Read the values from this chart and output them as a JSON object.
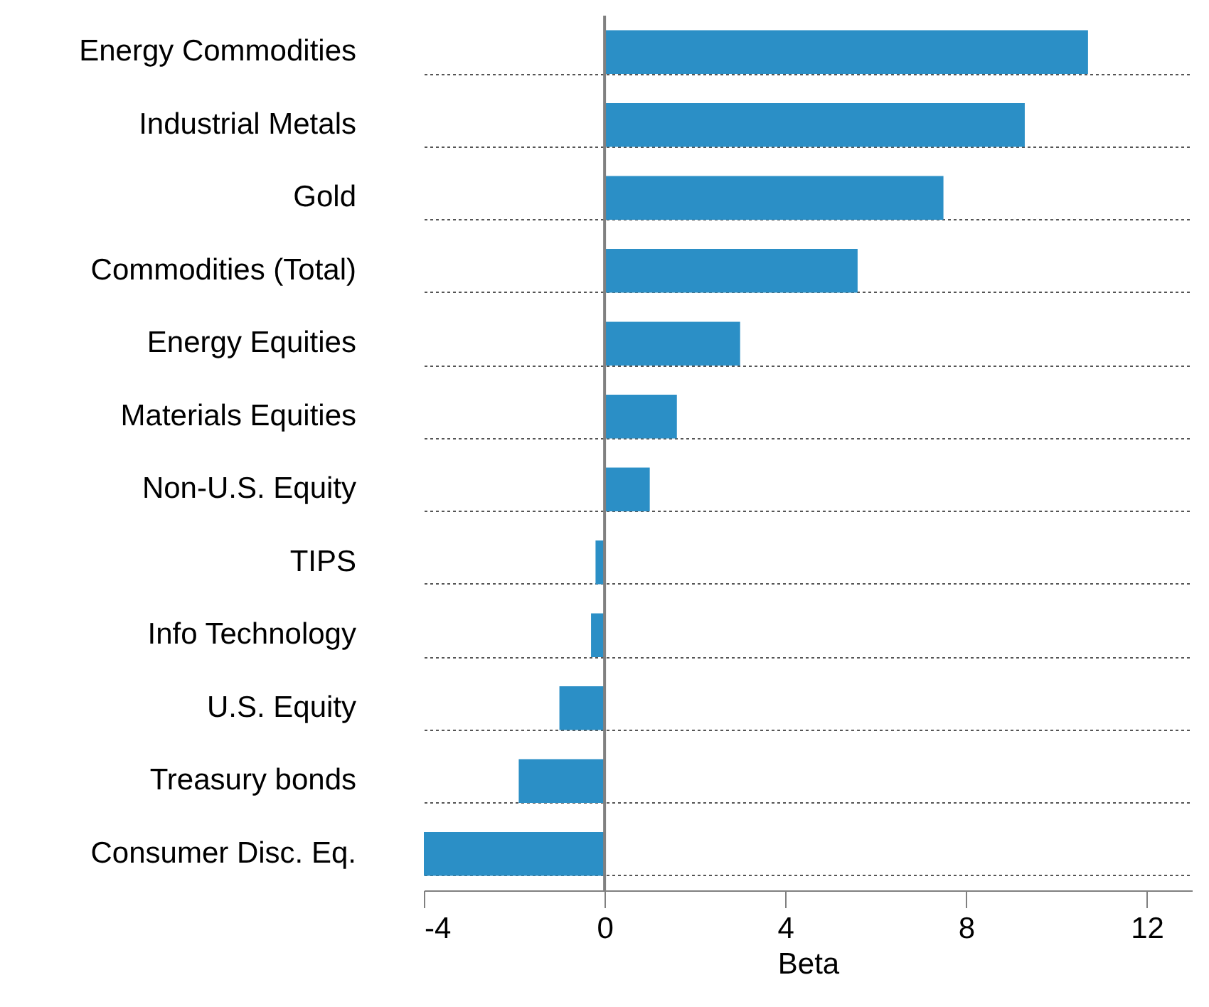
{
  "chart_data": {
    "type": "bar",
    "orientation": "horizontal",
    "xlabel": "Beta",
    "categories": [
      "Energy Commodities",
      "Industrial Metals",
      "Gold",
      "Commodities (Total)",
      "Energy Equities",
      "Materials Equities",
      "Non-U.S. Equity",
      "TIPS",
      "Info Technology",
      "U.S. Equity",
      "Treasury bonds",
      "Consumer Disc. Eq."
    ],
    "values": [
      10.7,
      9.3,
      7.5,
      5.6,
      3.0,
      1.6,
      1.0,
      -0.2,
      -0.3,
      -1.0,
      -1.9,
      -4.0
    ],
    "color": "#2b8fc6",
    "xlim": [
      -4,
      13
    ],
    "xticks": [
      -4,
      0,
      4,
      8,
      12
    ],
    "grid": "y",
    "ref_lines": [
      {
        "axis": "x",
        "value": 0,
        "color": "#808080"
      }
    ]
  }
}
